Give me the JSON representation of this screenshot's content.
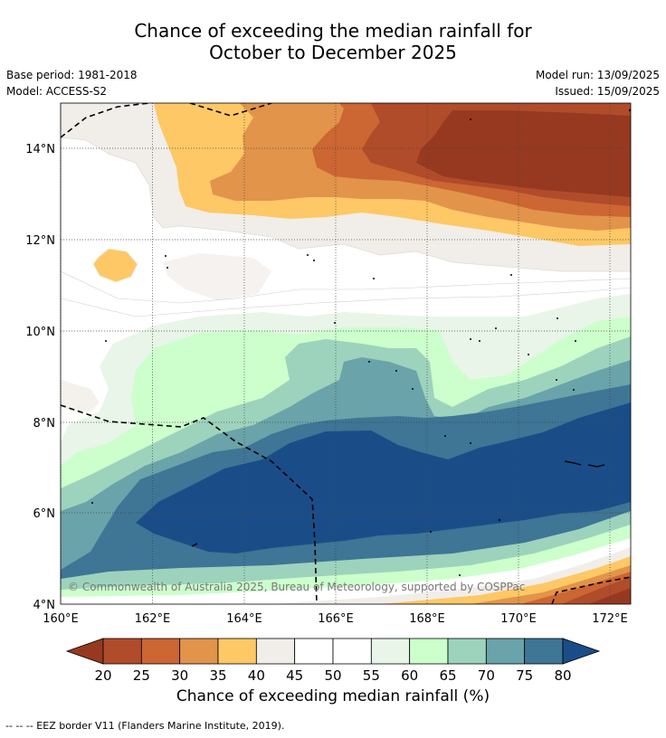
{
  "title_line1": "Chance of exceeding the median rainfall for",
  "title_line2": "October to December 2025",
  "base_period": "Base period: 1981-2018",
  "model": "Model: ACCESS-S2",
  "model_run": "Model run: 13/09/2025",
  "issued": "Issued: 15/09/2025",
  "copyright": "© Commonwealth of Australia 2025, Bureau of Meteorology, supported by COSPPac",
  "colorbar_label": "Chance of exceeding median rainfall (%)",
  "footnote": "--  --  -- EEZ border V11 (Flanders Marine Institute, 2019).",
  "chart_data": {
    "type": "map",
    "x_ticks": [
      "160°E",
      "162°E",
      "164°E",
      "166°E",
      "168°E",
      "170°E",
      "172°E"
    ],
    "y_ticks": [
      "14°N",
      "12°N",
      "10°N",
      "8°N",
      "6°N",
      "4°N"
    ],
    "lon_range": [
      160,
      172.5
    ],
    "lat_range": [
      4,
      15
    ],
    "colorbar": {
      "ticks": [
        "20",
        "25",
        "30",
        "35",
        "40",
        "45",
        "50",
        "55",
        "60",
        "65",
        "70",
        "75",
        "80"
      ],
      "colors": [
        "#973921",
        "#b04c2a",
        "#cc6633",
        "#e1944a",
        "#fdc865",
        "#f1ede8",
        "#ffffff",
        "#ffffff",
        "#e8f5e8",
        "#ccffcc",
        "#9dd3bc",
        "#6aa3a9",
        "#3f7595",
        "#1a4d88"
      ],
      "extend": "both"
    },
    "grid": true
  }
}
